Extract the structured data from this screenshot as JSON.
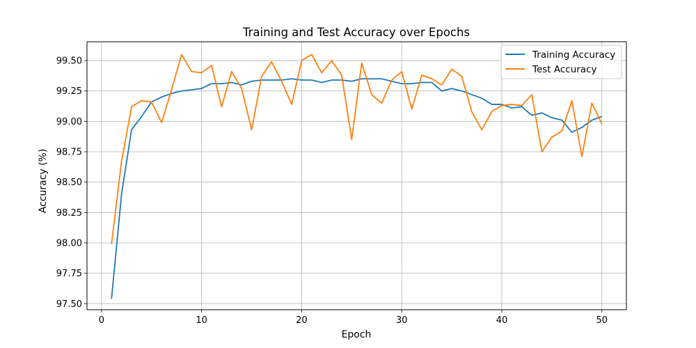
{
  "chart_data": {
    "type": "line",
    "title": "Training and Test Accuracy over Epochs",
    "xlabel": "Epoch",
    "ylabel": "Accuracy (%)",
    "xlim": [
      -1.45,
      52.45
    ],
    "ylim": [
      97.45,
      99.655
    ],
    "xticks": [
      0,
      10,
      20,
      30,
      40,
      50
    ],
    "yticks": [
      97.5,
      97.75,
      98.0,
      98.25,
      98.5,
      98.75,
      99.0,
      99.25,
      99.5
    ],
    "ytick_labels": [
      "97.50",
      "97.75",
      "98.00",
      "98.25",
      "98.50",
      "98.75",
      "99.00",
      "99.25",
      "99.50"
    ],
    "grid": true,
    "legend_position": "top-right",
    "x": [
      1,
      2,
      3,
      4,
      5,
      6,
      7,
      8,
      9,
      10,
      11,
      12,
      13,
      14,
      15,
      16,
      17,
      18,
      19,
      20,
      21,
      22,
      23,
      24,
      25,
      26,
      27,
      28,
      29,
      30,
      31,
      32,
      33,
      34,
      35,
      36,
      37,
      38,
      39,
      40,
      41,
      42,
      43,
      44,
      45,
      46,
      47,
      48,
      49,
      50
    ],
    "series": [
      {
        "name": "Training Accuracy",
        "color": "#1f77b4",
        "values": [
          97.54,
          98.4,
          98.93,
          99.04,
          99.16,
          99.2,
          99.23,
          99.25,
          99.26,
          99.27,
          99.31,
          99.31,
          99.32,
          99.3,
          99.33,
          99.34,
          99.34,
          99.34,
          99.35,
          99.34,
          99.34,
          99.32,
          99.34,
          99.34,
          99.33,
          99.35,
          99.35,
          99.35,
          99.33,
          99.31,
          99.31,
          99.32,
          99.32,
          99.25,
          99.27,
          99.25,
          99.22,
          99.19,
          99.14,
          99.14,
          99.11,
          99.12,
          99.05,
          99.07,
          99.03,
          99.01,
          98.91,
          98.95,
          99.01,
          99.04
        ]
      },
      {
        "name": "Test Accuracy",
        "color": "#ff7f0e",
        "values": [
          97.99,
          98.67,
          99.12,
          99.17,
          99.16,
          98.99,
          99.26,
          99.55,
          99.41,
          99.4,
          99.46,
          99.12,
          99.41,
          99.27,
          98.93,
          99.37,
          99.49,
          99.33,
          99.14,
          99.5,
          99.55,
          99.4,
          99.5,
          99.38,
          98.85,
          99.48,
          99.22,
          99.15,
          99.34,
          99.41,
          99.1,
          99.38,
          99.35,
          99.3,
          99.43,
          99.37,
          99.08,
          98.93,
          99.08,
          99.13,
          99.14,
          99.13,
          99.22,
          98.75,
          98.87,
          98.92,
          99.17,
          98.71,
          99.15,
          98.98
        ]
      }
    ]
  }
}
